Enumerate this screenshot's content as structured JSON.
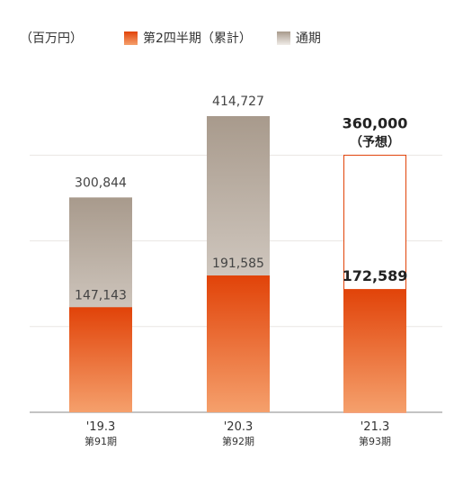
{
  "unit_label": "（百万円）",
  "legend": [
    {
      "label": "第2四半期（累計）",
      "swatch": "h1"
    },
    {
      "label": "通期",
      "swatch": "fy"
    }
  ],
  "colors": {
    "h1_top": "#e14309",
    "h1_bottom": "#f5a06c",
    "fy_top": "#a89a8c",
    "fy_bottom": "#f0ece8",
    "forecast_border": "#e14309",
    "grid": "#e9e6e3",
    "baseline": "#888888"
  },
  "chart_data": {
    "type": "bar",
    "categories": [
      "'19.3",
      "'20.3",
      "'21.3"
    ],
    "periods": [
      "第91期",
      "第92期",
      "第93期"
    ],
    "series": [
      {
        "name": "第2四半期（累計）",
        "values": [
          147143,
          191585,
          172589
        ],
        "labels": [
          "147,143",
          "191,585",
          "172,589"
        ]
      },
      {
        "name": "通期",
        "values": [
          300844,
          414727,
          360000
        ],
        "labels": [
          "300,844",
          "414,727",
          "360,000"
        ]
      }
    ],
    "forecast_note": "（予想）",
    "forecast_flags": [
      false,
      false,
      true
    ],
    "ylim": [
      0,
      480000
    ],
    "grid": true
  }
}
